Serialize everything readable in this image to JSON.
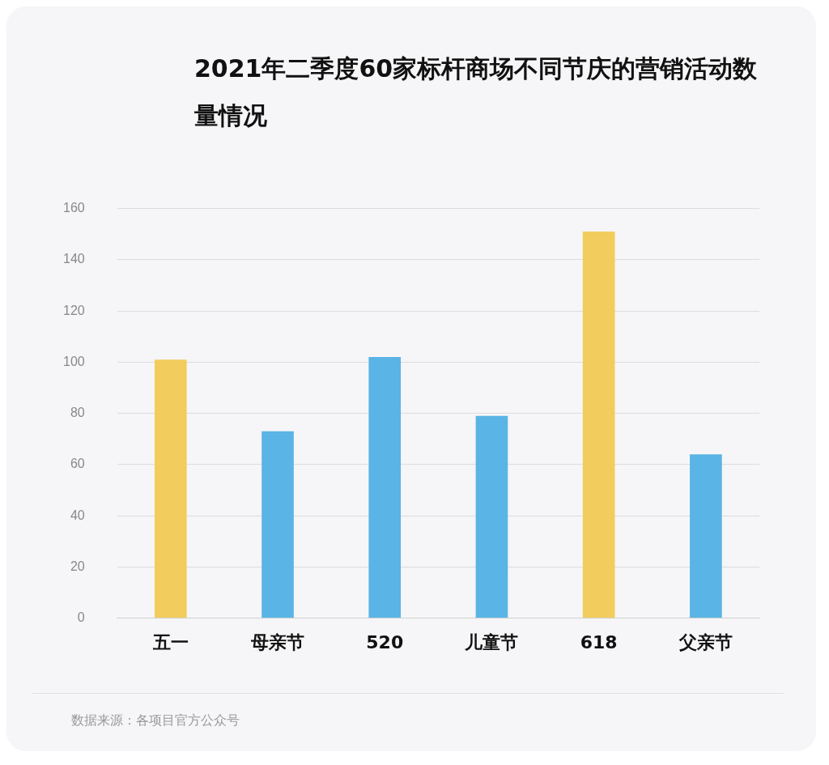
{
  "chart_data": {
    "type": "bar",
    "title": "2021年二季度60家标杆商场不同节庆的营销活动数量情况",
    "categories": [
      "五一",
      "母亲节",
      "520",
      "儿童节",
      "618",
      "父亲节"
    ],
    "values": [
      101,
      73,
      102,
      79,
      151,
      64
    ],
    "colors": [
      "#f2cd5d",
      "#5ab4e5",
      "#5ab4e5",
      "#5ab4e5",
      "#f2cd5d",
      "#5ab4e5"
    ],
    "ylim": [
      0,
      160
    ],
    "yticks": [
      0,
      20,
      40,
      60,
      80,
      100,
      120,
      140,
      160
    ],
    "grid": "y",
    "legend": false,
    "annotations": [
      "数据来源：各项目官方公众号"
    ]
  }
}
